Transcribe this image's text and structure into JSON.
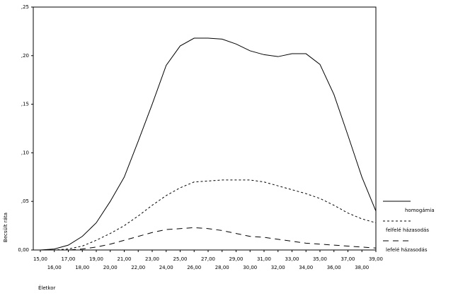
{
  "chart_data": {
    "type": "line",
    "x_label": "Életkor",
    "y_label": "Becsült ráta",
    "categories": [
      "15,00",
      "16,00",
      "17,00",
      "18,00",
      "19,00",
      "20,00",
      "21,00",
      "22,00",
      "23,00",
      "24,00",
      "25,00",
      "26,00",
      "27,00",
      "28,00",
      "29,00",
      "30,00",
      "31,00",
      "32,00",
      "33,00",
      "34,00",
      "35,00",
      "36,00",
      "37,00",
      "38,00",
      "39,00"
    ],
    "ylim": [
      0,
      0.25
    ],
    "yticks": [
      {
        "value": 0,
        "label": "0,00"
      },
      {
        "value": 0.05,
        "label": ",05"
      },
      {
        "value": 0.1,
        "label": ",10"
      },
      {
        "value": 0.15,
        "label": ",15"
      },
      {
        "value": 0.2,
        "label": ",20"
      },
      {
        "value": 0.25,
        "label": ",25"
      }
    ],
    "series": [
      {
        "name": "homogámia",
        "color": "#000000",
        "values": [
          0,
          0.001,
          0.005,
          0.014,
          0.028,
          0.05,
          0.075,
          0.112,
          0.15,
          0.19,
          0.21,
          0.218,
          0.218,
          0.217,
          0.212,
          0.205,
          0.201,
          0.199,
          0.202,
          0.202,
          0.191,
          0.16,
          0.118,
          0.075,
          0.04
        ]
      },
      {
        "name": "felfelé házasodás",
        "color": "#000000",
        "values": [
          0,
          0,
          0.001,
          0.004,
          0.01,
          0.017,
          0.025,
          0.035,
          0.046,
          0.056,
          0.064,
          0.07,
          0.071,
          0.072,
          0.072,
          0.072,
          0.07,
          0.066,
          0.062,
          0.058,
          0.053,
          0.046,
          0.038,
          0.032,
          0.028
        ]
      },
      {
        "name": "lefelé házasodás",
        "color": "#000000",
        "values": [
          0,
          0,
          0,
          0.001,
          0.003,
          0.006,
          0.01,
          0.014,
          0.018,
          0.021,
          0.022,
          0.023,
          0.022,
          0.02,
          0.017,
          0.014,
          0.013,
          0.011,
          0.009,
          0.007,
          0.006,
          0.005,
          0.004,
          0.003,
          0.002
        ]
      }
    ]
  }
}
